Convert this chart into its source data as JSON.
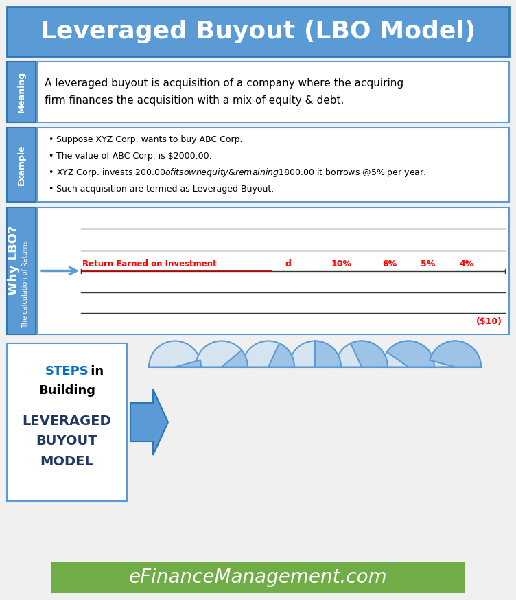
{
  "title": "Leveraged Buyout (LBO Model)",
  "title_bg": "#5b9bd5",
  "title_color": "white",
  "meaning_label": "Meaning",
  "meaning_text": "A leveraged buyout is acquisition of a company where the acquiring\nfirm finances the acquisition with a mix of equity & debt.",
  "example_label": "Example",
  "example_bullets": [
    "Suppose XYZ Corp. wants to buy ABC Corp.",
    "The value of ABC Corp. is $2000.00.",
    "XYZ Corp. invests $200.00 of its own equity & remaining $1800.00 it borrows @5% per year.",
    "Such acquisition are termed as Leveraged Buyout."
  ],
  "why_label": "Why LBO?",
  "why_sublabel": "The calculation of Returns",
  "why_row_label": "Return Earned on Investment",
  "why_values": [
    "d",
    "10%",
    "6%",
    "5%",
    "4%"
  ],
  "why_last_val": "($10)",
  "steps_title_steps": "STEPS",
  "steps_title_in": " in",
  "steps_title_building": "Building",
  "steps_title_lbo": "LEVERAGED\nBUYOUT\nMODEL",
  "footer_text": "eFinanceManagement.com",
  "footer_bg": "#70ad47",
  "label_bg": "#5b9bd5",
  "label_color": "white",
  "border_color": "#5b9bd5",
  "red_color": "#ff0000",
  "pie_color_fill": "#9dc3e6",
  "pie_color_bg": "#d6e4f0",
  "pie_outline": "#5b9bd5",
  "bg_color": "#f0f0f0",
  "section_bg": "white",
  "lbo_text_color": "#1f3864",
  "steps_color": "#0070c0",
  "why_lbo_label_fontsize": 13,
  "why_sublabel_fontsize": 7,
  "pie_angles": [
    15,
    40,
    65,
    90,
    115,
    145,
    165
  ]
}
